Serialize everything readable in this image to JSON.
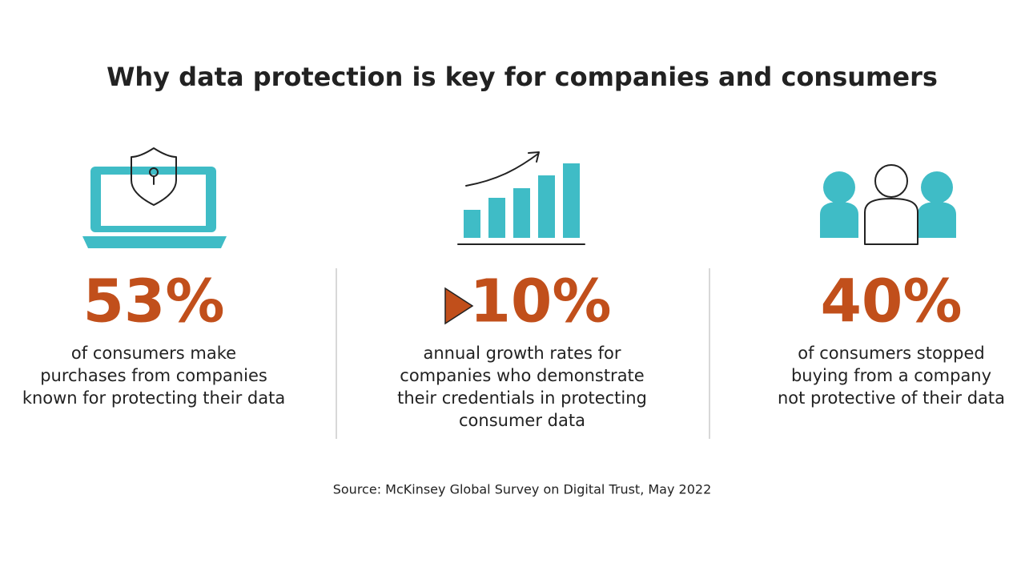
{
  "title": "Why data protection is key for companies and consumers",
  "stats": [
    {
      "value": "53%",
      "description": [
        "of consumers make",
        "purchases from companies",
        "known for protecting their data"
      ]
    },
    {
      "value": "10%",
      "description": [
        "annual growth rates for",
        "companies who demonstrate",
        "their credentials in protecting",
        "consumer data"
      ]
    },
    {
      "value": "40%",
      "description": [
        "of consumers stopped",
        "buying from a company",
        "not protective of their data"
      ]
    }
  ],
  "source": "Source: McKinsey Global Survey on Digital Trust, May 2022"
}
